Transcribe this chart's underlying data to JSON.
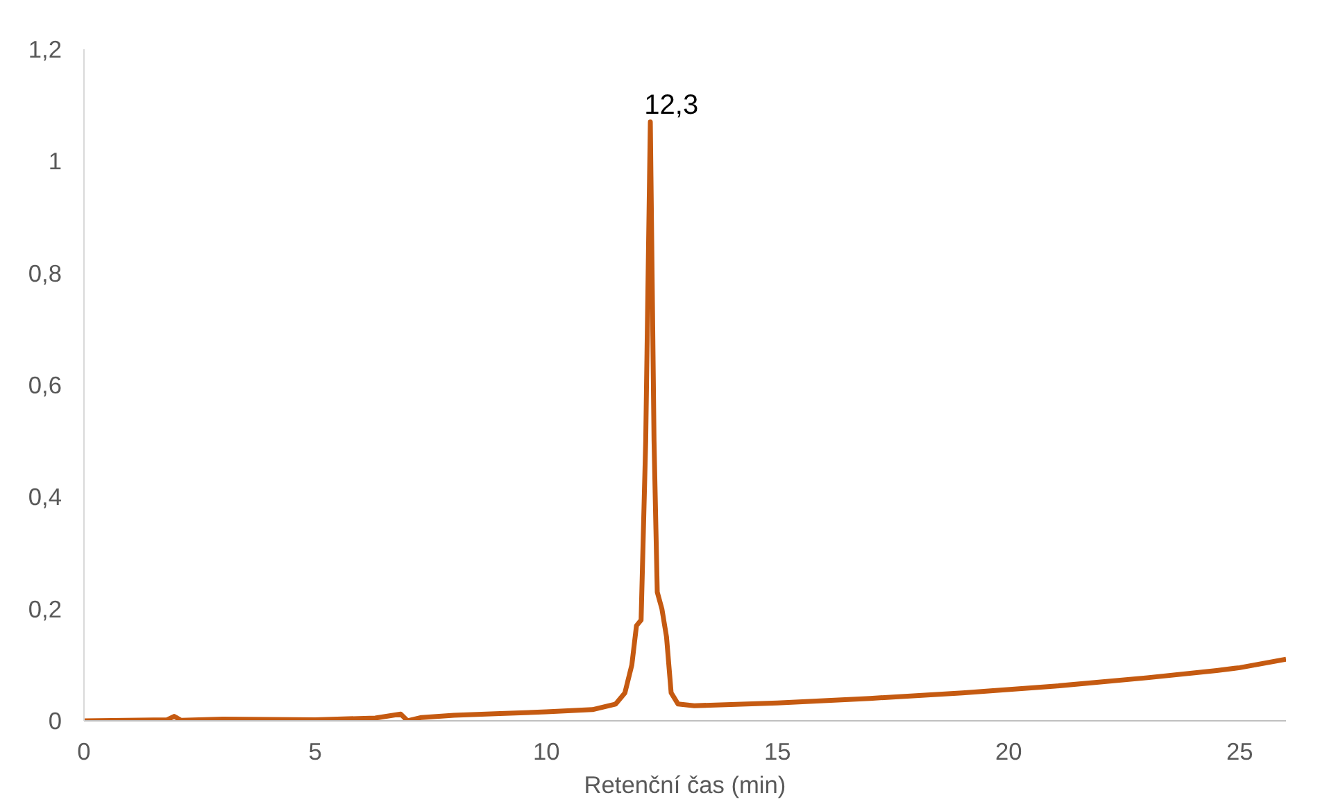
{
  "chart_data": {
    "type": "line",
    "xlabel": "Retenční čas (min)",
    "x": [
      0,
      1.8,
      1.95,
      2.1,
      3,
      5,
      6.3,
      6.85,
      7.0,
      7.3,
      8,
      9,
      10,
      11,
      11.5,
      11.7,
      11.85,
      11.95,
      12.05,
      12.15,
      12.25,
      12.33,
      12.4,
      12.5,
      12.6,
      12.7,
      12.85,
      13.2,
      15,
      17,
      19,
      21,
      23,
      24.5,
      25,
      26
    ],
    "series": [
      {
        "color": "#c55a11",
        "values": [
          0,
          0.002,
          0.008,
          0.001,
          0.003,
          0.002,
          0.005,
          0.012,
          0.0,
          0.006,
          0.01,
          0.013,
          0.016,
          0.02,
          0.03,
          0.05,
          0.1,
          0.17,
          0.18,
          0.5,
          1.07,
          0.5,
          0.23,
          0.2,
          0.15,
          0.05,
          0.03,
          0.027,
          0.032,
          0.04,
          0.05,
          0.062,
          0.077,
          0.09,
          0.095,
          0.11
        ]
      }
    ],
    "annotations": [
      {
        "text": "12,3",
        "x": 12.3,
        "y": 1.07
      }
    ],
    "xlim": [
      0,
      26
    ],
    "ylim": [
      0,
      1.2
    ],
    "xticks": [
      0,
      5,
      10,
      15,
      20,
      25
    ],
    "yticks": [
      0,
      {
        "value": 0.2,
        "label": "0,2"
      },
      {
        "value": 0.4,
        "label": "0,4"
      },
      {
        "value": 0.6,
        "label": "0,6"
      },
      {
        "value": 0.8,
        "label": "0,8"
      },
      1,
      {
        "value": 1.2,
        "label": "1,2"
      }
    ],
    "grid": false,
    "marker": "none",
    "line_style": "solid"
  }
}
